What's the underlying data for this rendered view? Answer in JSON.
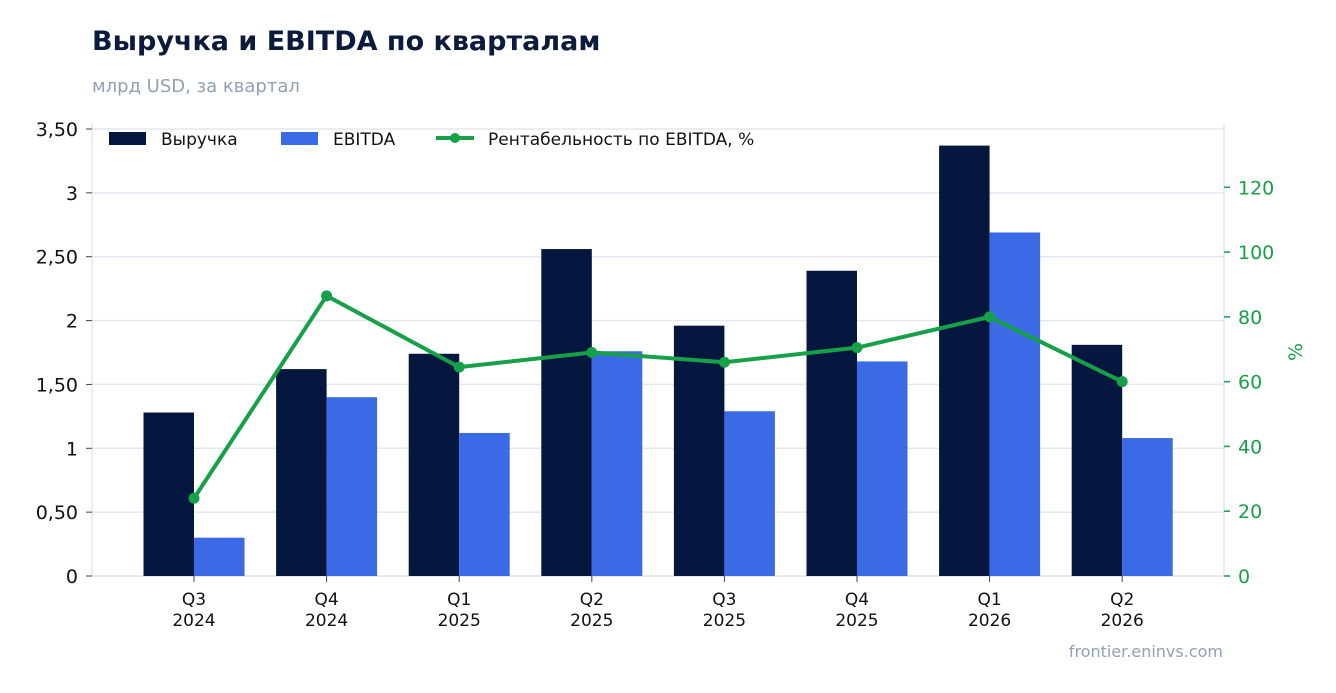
{
  "title": "Выручка и EBITDA по кварталам",
  "subtitle": "млрд USD, за квартал",
  "source": "frontier.eninvs.com",
  "colors": {
    "revenue": "#05163f",
    "ebitda": "#3a6ae6",
    "margin": "#16a047",
    "grid": "#e2e7f0",
    "axis_text": "#111111",
    "right_axis_text": "#16a047"
  },
  "chart_data": {
    "type": "bar",
    "categories": [
      [
        "Q3",
        "2024"
      ],
      [
        "Q4",
        "2024"
      ],
      [
        "Q1",
        "2025"
      ],
      [
        "Q2",
        "2025"
      ],
      [
        "Q3",
        "2025"
      ],
      [
        "Q4",
        "2025"
      ],
      [
        "Q1",
        "2026"
      ],
      [
        "Q2",
        "2026"
      ]
    ],
    "series": [
      {
        "name": "Выручка",
        "type": "bar",
        "axis": "left",
        "values": [
          1.28,
          1.62,
          1.74,
          2.56,
          1.96,
          2.39,
          3.37,
          1.81
        ]
      },
      {
        "name": "EBITDA",
        "type": "bar",
        "axis": "left",
        "values": [
          0.3,
          1.4,
          1.12,
          1.76,
          1.29,
          1.68,
          2.69,
          1.08
        ]
      },
      {
        "name": "Рентабельность по EBITDA, %",
        "type": "line",
        "axis": "right",
        "values": [
          24,
          86.5,
          64.5,
          69,
          66,
          70.5,
          80,
          60
        ]
      }
    ],
    "y_left": {
      "lim": [
        0,
        3.5
      ],
      "ticks": [
        0,
        0.5,
        1,
        1.5,
        2,
        2.5,
        3,
        3.5
      ],
      "tick_labels": [
        "0",
        "0,50",
        "1",
        "1,50",
        "2",
        "2,50",
        "3",
        "3,50"
      ]
    },
    "y_right": {
      "label": "%",
      "lim": [
        0,
        138
      ],
      "ticks": [
        0,
        20,
        40,
        60,
        80,
        100,
        120
      ],
      "tick_labels": [
        "0",
        "20",
        "40",
        "60",
        "80",
        "100",
        "120"
      ]
    },
    "grid": true,
    "legend_position": "top-left"
  }
}
